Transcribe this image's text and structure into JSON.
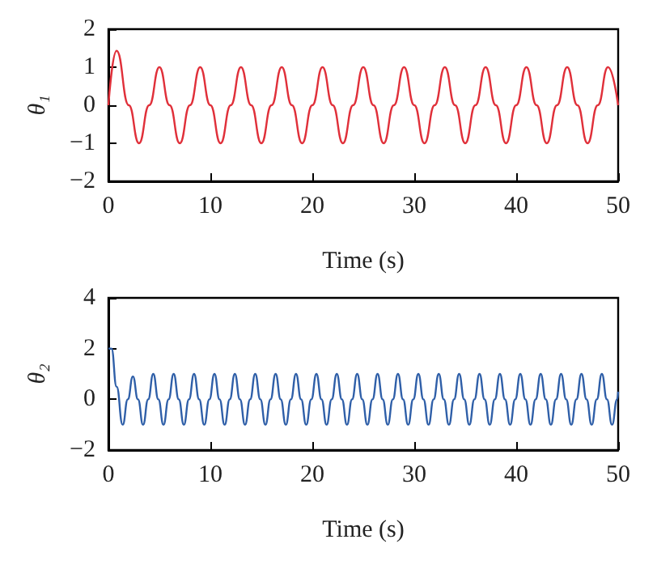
{
  "chart_data": [
    {
      "type": "line",
      "xlabel": "Time (s)",
      "ylabel": "θ₁",
      "xlim": [
        0,
        50
      ],
      "xticks": [
        0,
        10,
        20,
        30,
        40,
        50
      ],
      "ylim": [
        -2,
        2
      ],
      "yticks": [
        -2,
        -1,
        0,
        1,
        2
      ],
      "x": [
        0,
        0.8,
        2,
        3,
        4,
        5,
        6,
        7,
        8,
        9,
        10,
        11,
        12,
        13,
        14,
        15,
        16,
        17,
        18,
        19,
        20,
        21,
        22,
        23,
        24,
        25,
        26,
        27,
        28,
        29,
        30,
        31,
        32,
        33,
        34,
        35,
        36,
        37,
        38,
        39,
        40,
        41,
        42,
        43,
        44,
        45,
        46,
        47,
        48,
        49,
        50
      ],
      "series": [
        {
          "color": "#e0303a",
          "values": [
            0,
            1.43,
            0,
            -1,
            0,
            1,
            0,
            -1,
            0,
            1,
            0,
            -1,
            0,
            1,
            0,
            -1,
            0,
            1,
            0,
            -1,
            0,
            1,
            0,
            -1,
            0,
            1,
            0,
            -1,
            0,
            1,
            0,
            -1,
            0,
            1,
            0,
            -1,
            0,
            1,
            0,
            -1,
            0,
            1,
            0,
            -1,
            0,
            1,
            0,
            -1,
            0,
            1,
            0
          ]
        }
      ]
    },
    {
      "type": "line",
      "xlabel": "Time (s)",
      "ylabel": "θ₂",
      "xlim": [
        0,
        50
      ],
      "xticks": [
        0,
        10,
        20,
        30,
        40,
        50
      ],
      "ylim": [
        -2,
        4
      ],
      "yticks": [
        -2,
        0,
        2,
        4
      ],
      "x": [
        0,
        0.3,
        0.8,
        1.4,
        1.9,
        2.4,
        2.9,
        3.4,
        3.9,
        4.4,
        4.9,
        5.4,
        5.9,
        6.4,
        6.9,
        7.4,
        7.9,
        8.4,
        8.9,
        9.4,
        9.9,
        10.4,
        10.9,
        11.4,
        11.9,
        12.4,
        12.9,
        13.4,
        13.9,
        14.4,
        14.9,
        15.4,
        15.9,
        16.4,
        16.9,
        17.4,
        17.9,
        18.4,
        18.9,
        19.4,
        19.9,
        20.4,
        20.9,
        21.4,
        21.9,
        22.4,
        22.9,
        23.4,
        23.9,
        24.4,
        24.9,
        25.4,
        25.9,
        26.4,
        26.9,
        27.4,
        27.9,
        28.4,
        28.9,
        29.4,
        29.9,
        30.4,
        30.9,
        31.4,
        31.9,
        32.4,
        32.9,
        33.4,
        33.9,
        34.4,
        34.9,
        35.4,
        35.9,
        36.4,
        36.9,
        37.4,
        37.9,
        38.4,
        38.9,
        39.4,
        39.9,
        40.4,
        40.9,
        41.4,
        41.9,
        42.4,
        42.9,
        43.4,
        43.9,
        44.4,
        44.9,
        45.4,
        45.9,
        46.4,
        46.9,
        47.4,
        47.9,
        48.4,
        48.9,
        49.4,
        49.9,
        50
      ],
      "series": [
        {
          "color": "#2f5fa8",
          "values": [
            2,
            2,
            0.5,
            -1,
            0,
            0.9,
            0,
            -1,
            0,
            1,
            0,
            -1,
            0,
            1,
            0,
            -1,
            0,
            1,
            0,
            -1,
            0,
            1,
            0,
            -1,
            0,
            1,
            0,
            -1,
            0,
            1,
            0,
            -1,
            0,
            1,
            0,
            -1,
            0,
            1,
            0,
            -1,
            0,
            1,
            0,
            -1,
            0,
            1,
            0,
            -1,
            0,
            1,
            0,
            -1,
            0,
            1,
            0,
            -1,
            0,
            1,
            0,
            -1,
            0,
            1,
            0,
            -1,
            0,
            1,
            0,
            -1,
            0,
            1,
            0,
            -1,
            0,
            1,
            0,
            -1,
            0,
            1,
            0,
            -1,
            0,
            1,
            0,
            -1,
            0,
            1,
            0,
            -1,
            0,
            1,
            0,
            -1,
            0,
            1,
            0,
            -1,
            0,
            1,
            0,
            -1,
            0,
            0.3
          ]
        }
      ]
    }
  ]
}
